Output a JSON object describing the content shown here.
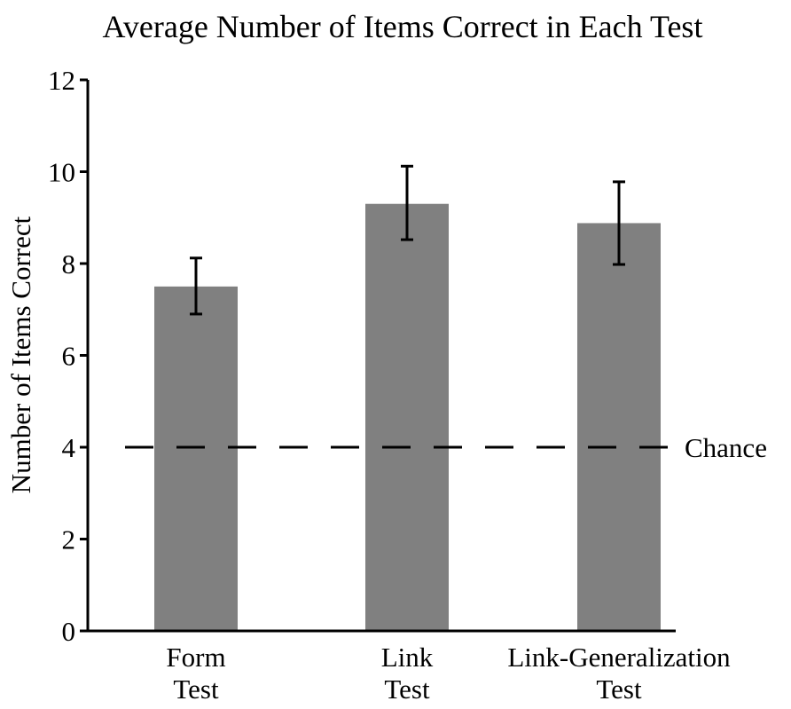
{
  "chart_data": {
    "type": "bar",
    "title": "Average Number of Items Correct in Each Test",
    "ylabel": "Number of Items Correct",
    "xlabel": "",
    "ylim": [
      0,
      12
    ],
    "yticks": [
      0,
      2,
      4,
      6,
      8,
      10,
      12
    ],
    "categories": [
      [
        "Form",
        "Test"
      ],
      [
        "Link",
        "Test"
      ],
      [
        "Link-Generalization",
        "Test"
      ]
    ],
    "values": [
      7.5,
      9.3,
      8.88
    ],
    "error_bars": [
      {
        "low": 6.9,
        "high": 8.12
      },
      {
        "low": 8.52,
        "high": 10.12
      },
      {
        "low": 7.98,
        "high": 9.78
      }
    ],
    "reference_line": {
      "value": 4,
      "label": "Chance",
      "style": "dashed"
    },
    "bar_color": "#808080",
    "grid": false
  }
}
